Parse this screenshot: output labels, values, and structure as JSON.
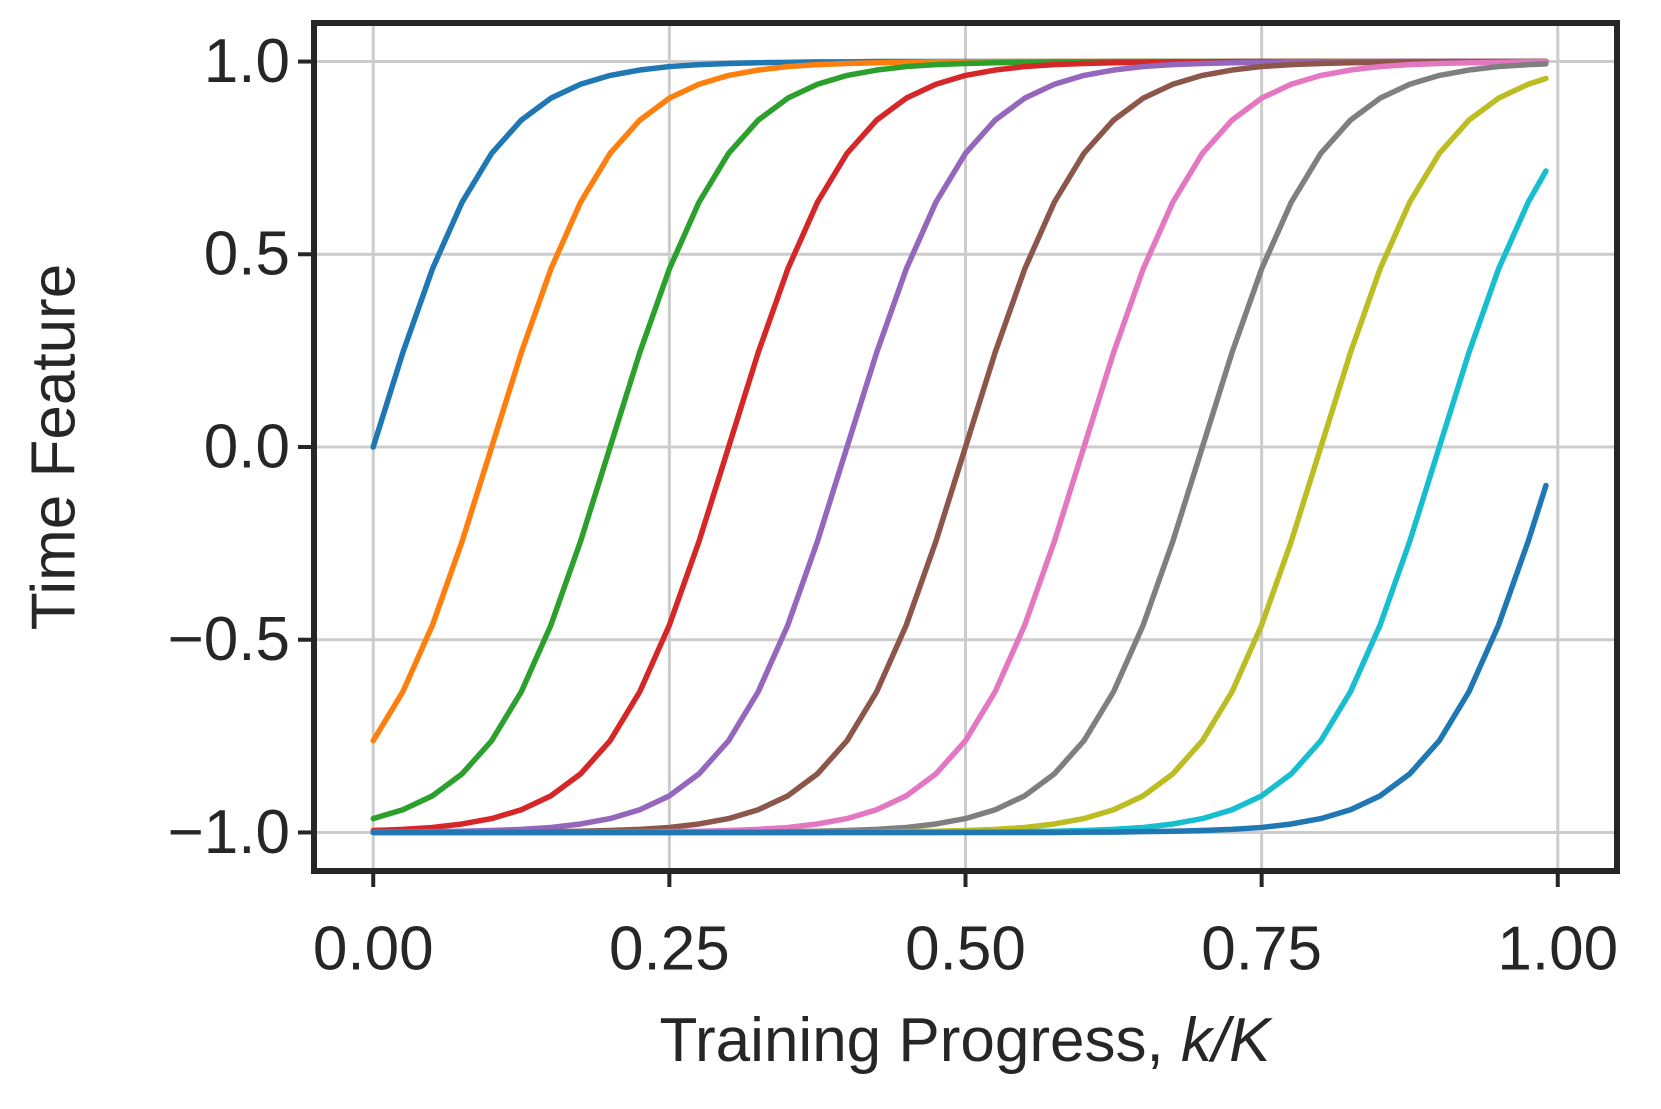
{
  "chart_data": {
    "type": "line",
    "xlabel": [
      "Training Progress, ",
      "k/K"
    ],
    "ylabel": "Time Feature",
    "xlim": [
      -0.05,
      1.05
    ],
    "ylim": [
      -1.1,
      1.1
    ],
    "xticks": [
      {
        "value": 0,
        "label": "0.00"
      },
      {
        "value": 0.25,
        "label": "0.25"
      },
      {
        "value": 0.5,
        "label": "0.50"
      },
      {
        "value": 0.75,
        "label": "0.75"
      },
      {
        "value": 1,
        "label": "1.00"
      }
    ],
    "yticks": [
      {
        "value": -1,
        "label": "−1.0"
      },
      {
        "value": -0.5,
        "label": "−0.5"
      },
      {
        "value": 0,
        "label": "0.0"
      },
      {
        "value": 0.5,
        "label": "0.5"
      },
      {
        "value": 1,
        "label": "1.0"
      }
    ],
    "grid": true,
    "x": [
      0,
      0.025,
      0.05,
      0.075,
      0.1,
      0.125,
      0.15,
      0.175,
      0.2,
      0.225,
      0.25,
      0.275,
      0.3,
      0.325,
      0.35,
      0.375,
      0.4,
      0.425,
      0.45,
      0.475,
      0.5,
      0.525,
      0.55,
      0.575,
      0.6,
      0.625,
      0.65,
      0.675,
      0.7,
      0.725,
      0.75,
      0.775,
      0.8,
      0.825,
      0.85,
      0.875,
      0.9,
      0.925,
      0.95,
      0.975,
      0.99
    ],
    "series": [
      {
        "color": "#1f77b4",
        "values": [
          0,
          0.245,
          0.462,
          0.635,
          0.762,
          0.848,
          0.905,
          0.941,
          0.964,
          0.978,
          0.987,
          0.992,
          0.995,
          0.997,
          0.998,
          0.999,
          0.999,
          1,
          1,
          1,
          1,
          1,
          1,
          1,
          1,
          1,
          1,
          1,
          1,
          1,
          1,
          1,
          1,
          1,
          1,
          1,
          1,
          1,
          1,
          1,
          1
        ]
      },
      {
        "color": "#ff7f0e",
        "values": [
          -0.762,
          -0.635,
          -0.462,
          -0.245,
          0,
          0.245,
          0.462,
          0.635,
          0.762,
          0.848,
          0.905,
          0.941,
          0.964,
          0.978,
          0.987,
          0.992,
          0.995,
          0.997,
          0.998,
          0.999,
          0.999,
          1,
          1,
          1,
          1,
          1,
          1,
          1,
          1,
          1,
          1,
          1,
          1,
          1,
          1,
          1,
          1,
          1,
          1,
          1,
          1
        ]
      },
      {
        "color": "#2ca02c",
        "values": [
          -0.964,
          -0.941,
          -0.905,
          -0.848,
          -0.762,
          -0.635,
          -0.462,
          -0.245,
          0,
          0.245,
          0.462,
          0.635,
          0.762,
          0.848,
          0.905,
          0.941,
          0.964,
          0.978,
          0.987,
          0.992,
          0.995,
          0.997,
          0.998,
          0.999,
          0.999,
          1,
          1,
          1,
          1,
          1,
          1,
          1,
          1,
          1,
          1,
          1,
          1,
          1,
          1,
          1,
          1
        ]
      },
      {
        "color": "#d62728",
        "values": [
          -0.995,
          -0.992,
          -0.987,
          -0.978,
          -0.964,
          -0.941,
          -0.905,
          -0.848,
          -0.762,
          -0.635,
          -0.462,
          -0.245,
          0,
          0.245,
          0.462,
          0.635,
          0.762,
          0.848,
          0.905,
          0.941,
          0.964,
          0.978,
          0.987,
          0.992,
          0.995,
          0.997,
          0.998,
          0.999,
          0.999,
          1,
          1,
          1,
          1,
          1,
          1,
          1,
          1,
          1,
          1,
          1,
          1
        ]
      },
      {
        "color": "#9467bd",
        "values": [
          -0.999,
          -0.999,
          -0.998,
          -0.997,
          -0.995,
          -0.992,
          -0.987,
          -0.978,
          -0.964,
          -0.941,
          -0.905,
          -0.848,
          -0.762,
          -0.635,
          -0.462,
          -0.245,
          0,
          0.245,
          0.462,
          0.635,
          0.762,
          0.848,
          0.905,
          0.941,
          0.964,
          0.978,
          0.987,
          0.992,
          0.995,
          0.997,
          0.998,
          0.999,
          0.999,
          1,
          1,
          1,
          1,
          1,
          1,
          1,
          1
        ]
      },
      {
        "color": "#8c564b",
        "values": [
          -1,
          -1,
          -1,
          -1,
          -0.999,
          -0.999,
          -0.998,
          -0.997,
          -0.995,
          -0.992,
          -0.987,
          -0.978,
          -0.964,
          -0.941,
          -0.905,
          -0.848,
          -0.762,
          -0.635,
          -0.462,
          -0.245,
          0,
          0.245,
          0.462,
          0.635,
          0.762,
          0.848,
          0.905,
          0.941,
          0.964,
          0.978,
          0.987,
          0.992,
          0.995,
          0.997,
          0.998,
          0.999,
          0.999,
          1,
          1,
          1,
          1
        ]
      },
      {
        "color": "#e377c2",
        "values": [
          -1,
          -1,
          -1,
          -1,
          -1,
          -1,
          -1,
          -1,
          -0.999,
          -0.999,
          -0.998,
          -0.997,
          -0.995,
          -0.992,
          -0.987,
          -0.978,
          -0.964,
          -0.941,
          -0.905,
          -0.848,
          -0.762,
          -0.635,
          -0.462,
          -0.245,
          0,
          0.245,
          0.462,
          0.635,
          0.762,
          0.848,
          0.905,
          0.941,
          0.964,
          0.978,
          0.987,
          0.992,
          0.995,
          0.997,
          0.998,
          0.999,
          0.999
        ]
      },
      {
        "color": "#7f7f7f",
        "values": [
          -1,
          -1,
          -1,
          -1,
          -1,
          -1,
          -1,
          -1,
          -1,
          -1,
          -1,
          -1,
          -0.999,
          -0.999,
          -0.998,
          -0.997,
          -0.995,
          -0.992,
          -0.987,
          -0.978,
          -0.964,
          -0.941,
          -0.905,
          -0.848,
          -0.762,
          -0.635,
          -0.462,
          -0.245,
          0,
          0.245,
          0.462,
          0.635,
          0.762,
          0.848,
          0.905,
          0.941,
          0.964,
          0.978,
          0.987,
          0.992,
          0.994
        ]
      },
      {
        "color": "#bcbd22",
        "values": [
          -1,
          -1,
          -1,
          -1,
          -1,
          -1,
          -1,
          -1,
          -1,
          -1,
          -1,
          -1,
          -1,
          -1,
          -1,
          -1,
          -0.999,
          -0.999,
          -0.998,
          -0.997,
          -0.995,
          -0.992,
          -0.987,
          -0.978,
          -0.964,
          -0.941,
          -0.905,
          -0.848,
          -0.762,
          -0.635,
          -0.462,
          -0.245,
          0,
          0.245,
          0.462,
          0.635,
          0.762,
          0.848,
          0.905,
          0.941,
          0.956
        ]
      },
      {
        "color": "#17becf",
        "values": [
          -1,
          -1,
          -1,
          -1,
          -1,
          -1,
          -1,
          -1,
          -1,
          -1,
          -1,
          -1,
          -1,
          -1,
          -1,
          -1,
          -1,
          -1,
          -1,
          -1,
          -0.999,
          -0.999,
          -0.998,
          -0.997,
          -0.995,
          -0.992,
          -0.987,
          -0.978,
          -0.964,
          -0.941,
          -0.905,
          -0.848,
          -0.762,
          -0.635,
          -0.462,
          -0.245,
          0,
          0.245,
          0.462,
          0.635,
          0.716
        ]
      },
      {
        "color": "#1f77b4",
        "values": [
          -1,
          -1,
          -1,
          -1,
          -1,
          -1,
          -1,
          -1,
          -1,
          -1,
          -1,
          -1,
          -1,
          -1,
          -1,
          -1,
          -1,
          -1,
          -1,
          -1,
          -1,
          -1,
          -1,
          -1,
          -0.999,
          -0.999,
          -0.998,
          -0.997,
          -0.995,
          -0.992,
          -0.987,
          -0.978,
          -0.964,
          -0.941,
          -0.905,
          -0.848,
          -0.762,
          -0.635,
          -0.462,
          -0.245,
          -0.1
        ]
      }
    ]
  }
}
